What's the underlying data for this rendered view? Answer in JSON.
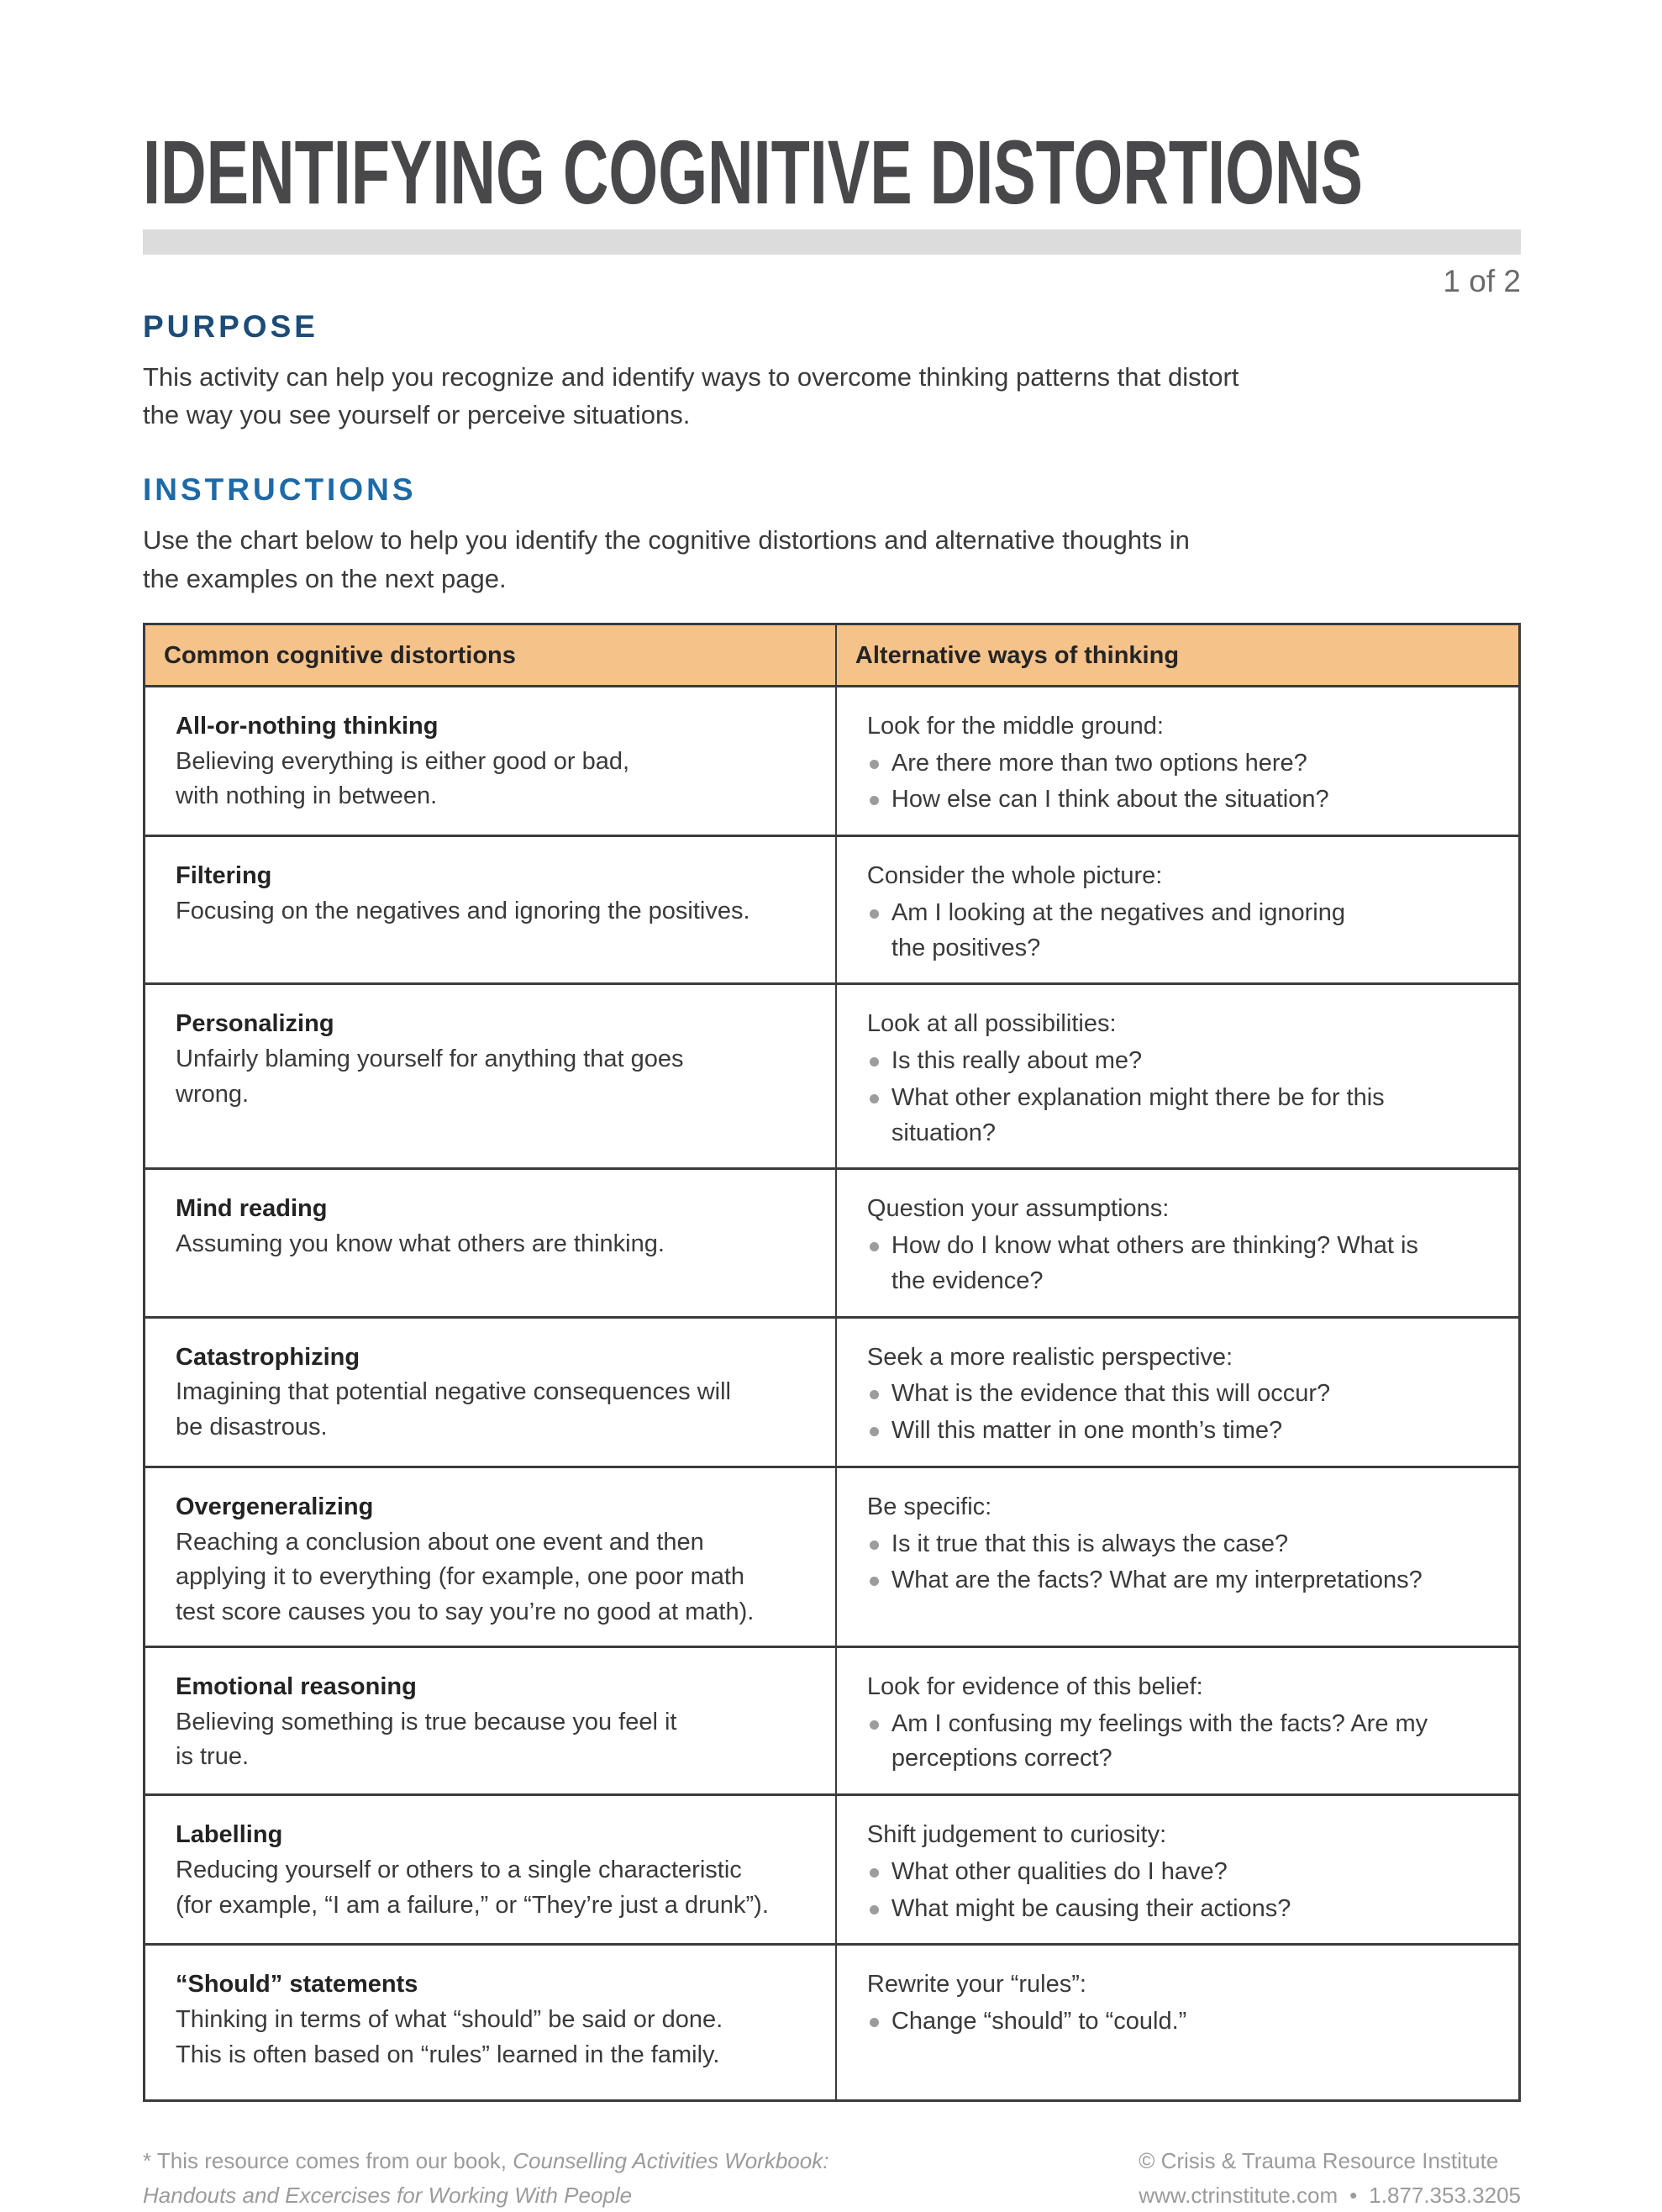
{
  "header": {
    "title": "IDENTIFYING COGNITIVE DISTORTIONS",
    "page_indicator": "1 of 2"
  },
  "purpose": {
    "heading": "PURPOSE",
    "body": "This activity can help you recognize and identify ways to overcome thinking patterns that distort\nthe way you see yourself or perceive situations."
  },
  "instructions": {
    "heading": "INSTRUCTIONS",
    "body": "Use the chart below to help you identify the cognitive distortions and alternative thoughts in\nthe examples on the next page."
  },
  "table": {
    "columns": [
      "Common cognitive distortions",
      "Alternative ways of thinking"
    ],
    "rows": [
      {
        "name": "All-or-nothing thinking",
        "description": "Believing everything is either good or bad,\nwith nothing in between.",
        "intro": "Look for the middle ground:",
        "bullets": [
          "Are there more than two options here?",
          "How else can I think about the situation?"
        ]
      },
      {
        "name": "Filtering",
        "description": "Focusing on the negatives and ignoring the positives.",
        "intro": "Consider the whole picture:",
        "bullets": [
          "Am I looking at the negatives and ignoring\nthe positives?"
        ]
      },
      {
        "name": "Personalizing",
        "description": "Unfairly blaming yourself for anything that goes\nwrong.",
        "intro": "Look at all possibilities:",
        "bullets": [
          "Is this really about me?",
          "What other explanation might there be for this\nsituation?"
        ]
      },
      {
        "name": "Mind reading",
        "description": "Assuming you know what others are thinking.",
        "intro": "Question your assumptions:",
        "bullets": [
          "How do I know what others are thinking? What is\nthe evidence?"
        ]
      },
      {
        "name": "Catastrophizing",
        "description": "Imagining that potential negative consequences will\nbe disastrous.",
        "intro": "Seek a more realistic perspective:",
        "bullets": [
          "What is the evidence that this will occur?",
          "Will this matter in one month’s time?"
        ]
      },
      {
        "name": "Overgeneralizing",
        "description": "Reaching a conclusion about one event and then\napplying it to everything (for example, one poor math\ntest score causes you to say you’re no good at math).",
        "intro": "Be specific:",
        "bullets": [
          "Is it true that this is always the case?",
          "What are the facts? What are my interpretations?"
        ]
      },
      {
        "name": "Emotional reasoning",
        "description": "Believing something is true because you feel it\nis true.",
        "intro": "Look for evidence of this belief:",
        "bullets": [
          "Am I confusing my feelings with the facts? Are my\nperceptions correct?"
        ]
      },
      {
        "name": "Labelling",
        "description": "Reducing yourself or others to a single characteristic\n(for example, “I am a failure,” or “They’re just a drunk”).",
        "intro": "Shift judgement to curiosity:",
        "bullets": [
          "What other qualities do I have?",
          "What might be causing their actions?"
        ]
      },
      {
        "name": "“Should” statements",
        "description": "Thinking in terms of what “should” be said or done.\nThis is often based on “rules” learned in the family.",
        "intro": "Rewrite your “rules”:",
        "bullets": [
          "Change “should” to “could.”"
        ]
      }
    ]
  },
  "footer": {
    "left_prefix": "* This resource comes from our book, ",
    "left_book": "Counselling Activities Workbook:",
    "left_line2": "Handouts and Excercises for Working With People",
    "right_copyright": "© Crisis & Trauma Resource Institute",
    "right_site": "www.ctrinstitute.com",
    "right_separator": "•",
    "right_phone": "1.877.353.3205"
  },
  "colors": {
    "title_gray": "#48484a",
    "divider_gray": "#dcdcdd",
    "page_indicator_gray": "#6a6a6c",
    "purpose_navy": "#1c4c78",
    "instructions_blue": "#1e6aa7",
    "body_text": "#3a3a3c",
    "table_header_bg": "#f5c289",
    "table_border": "#3b3b3d",
    "bullet_gray": "#9c9c9e",
    "footer_gray": "#9b9b9d"
  }
}
